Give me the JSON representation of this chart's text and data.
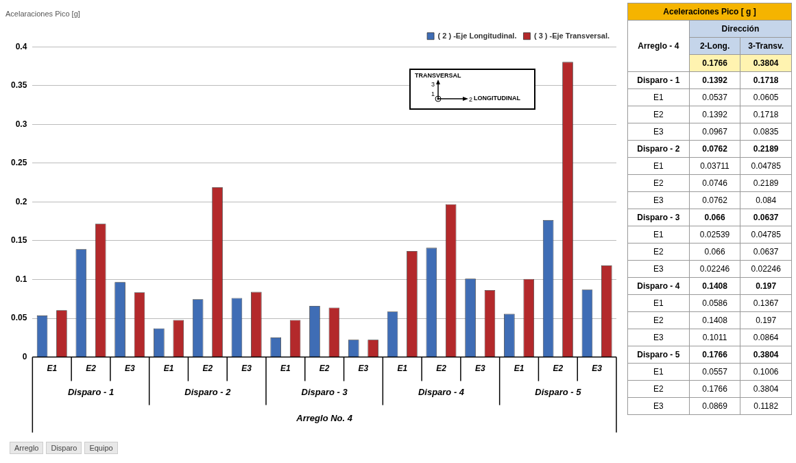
{
  "chart_data": {
    "type": "bar",
    "title": "Acelaraciones Pico [g]",
    "categories": [
      "E1",
      "E2",
      "E3",
      "E1",
      "E2",
      "E3",
      "E1",
      "E2",
      "E3",
      "E1",
      "E2",
      "E3",
      "E1",
      "E2",
      "E3"
    ],
    "series": [
      {
        "name": "( 2 ) -Eje Longitudinal.",
        "color": "#3f6db5",
        "values": [
          0.0537,
          0.1392,
          0.0967,
          0.03711,
          0.0746,
          0.0762,
          0.02539,
          0.066,
          0.02246,
          0.0586,
          0.1408,
          0.1011,
          0.0557,
          0.1766,
          0.0869
        ]
      },
      {
        "name": "( 3 ) -Eje Transversal.",
        "color": "#b3292b",
        "values": [
          0.0605,
          0.1718,
          0.0835,
          0.04785,
          0.2189,
          0.084,
          0.04785,
          0.0637,
          0.02246,
          0.1367,
          0.197,
          0.0864,
          0.1006,
          0.3804,
          0.1182
        ]
      }
    ],
    "ylim": [
      0,
      0.4
    ],
    "yticks": [
      0,
      0.05,
      0.1,
      0.15,
      0.2,
      0.25,
      0.3,
      0.35,
      0.4
    ],
    "grid": "y",
    "legend": "top right",
    "annotations": [
      "Disparo - 1",
      "Disparo - 2",
      "Disparo - 3",
      "Disparo - 4",
      "Disparo - 5",
      "Arreglo No. 4",
      "TRANSVERSAL",
      "LONGITUDINAL",
      "3",
      "1",
      "2",
      "Arreglo",
      "Disparo",
      "Equipo",
      "Aceleraciones Pico [ g ]",
      "Dirección",
      "Arreglo - 4",
      "2-Long.",
      "3-Transv.",
      "0.1766",
      "0.3804",
      "0.1392",
      "0.1718",
      "0.0762",
      "0.2189",
      "0.066",
      "0.0637",
      "0.1408",
      "0.197",
      "0.1766",
      "0.3804",
      "0.0537",
      "0.0605",
      "0.1392",
      "0.1718",
      "0.0967",
      "0.0835",
      "0.03711",
      "0.04785",
      "0.0746",
      "0.2189",
      "0.0762",
      "0.084",
      "0.02539",
      "0.04785",
      "0.066",
      "0.0637",
      "0.02246",
      "0.02246",
      "0.0586",
      "0.1367",
      "0.1408",
      "0.197",
      "0.1011",
      "0.0864",
      "0.0557",
      "0.1006",
      "0.1766",
      "0.3804",
      "0.0869",
      "0.1182"
    ]
  }
}
